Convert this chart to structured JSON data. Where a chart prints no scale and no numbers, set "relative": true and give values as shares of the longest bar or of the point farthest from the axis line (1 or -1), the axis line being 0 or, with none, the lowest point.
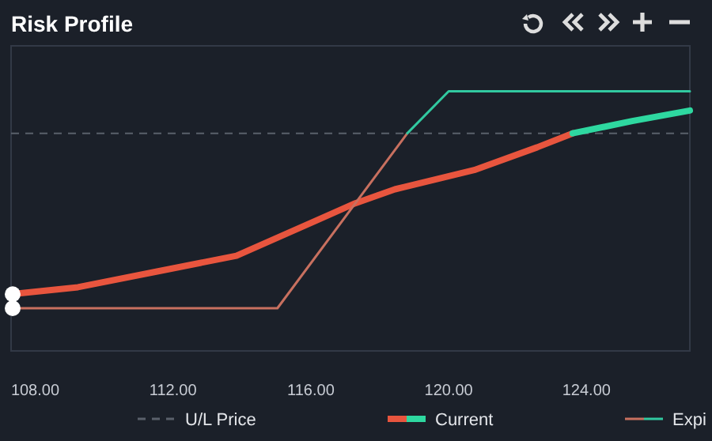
{
  "chart_data": {
    "type": "line",
    "title": "Risk Profile",
    "relative": true,
    "xlim": [
      107.3,
      127
    ],
    "xticks": [
      {
        "value": 108,
        "label": "108.00"
      },
      {
        "value": 112,
        "label": "112.00"
      },
      {
        "value": 116,
        "label": "116.00"
      },
      {
        "value": 120,
        "label": "120.00"
      },
      {
        "value": 124,
        "label": "124.00"
      }
    ],
    "series": [
      {
        "name": "Current",
        "color": "#e8553e",
        "x": [
          107.3,
          109.24,
          111.54,
          113.84,
          116.14,
          117.29,
          118.44,
          120.74,
          122.57,
          123.6
        ],
        "values": [
          -0.92,
          -0.88,
          -0.79,
          -0.7,
          -0.5,
          -0.4,
          -0.32,
          -0.21,
          -0.08,
          0
        ]
      },
      {
        "color": "#2ed8a0",
        "x": [
          123.6,
          125.33,
          127
        ],
        "values": [
          0,
          0.07,
          0.13
        ]
      },
      {
        "name": "Expi",
        "color": "#c8705f",
        "x": [
          107.3,
          115.03,
          118.8
        ],
        "values": [
          -1,
          -1,
          0
        ]
      },
      {
        "color": "#31c9a0",
        "x": [
          118.8,
          120,
          127
        ],
        "values": [
          0,
          0.24,
          0.24
        ]
      }
    ],
    "ref_lines": [
      {
        "axis": "y",
        "value": 0,
        "label": "U/L Price",
        "color": "#5a606b",
        "line_style": "dashed"
      }
    ],
    "legend": "bottom"
  }
}
